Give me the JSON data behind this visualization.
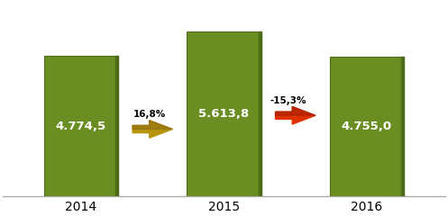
{
  "categories": [
    "2014",
    "2015",
    "2016"
  ],
  "values": [
    4774.5,
    5613.8,
    4755.0
  ],
  "bar_labels": [
    "4.774,5",
    "5.613,8",
    "4.755,0"
  ],
  "bar_color": "#6B8E23",
  "bar_edge_color": "#4E6B1A",
  "bar_highlight": "#7FA128",
  "background_color": "#FFFFFF",
  "bar_width": 0.52,
  "ylim": [
    0,
    6600
  ],
  "xlim": [
    -0.55,
    2.55
  ],
  "arrow1_pct": "16,8%",
  "arrow2_pct": "-15,3%",
  "arrow1_color_body": "#B8960C",
  "arrow1_color_dark": "#8B6914",
  "arrow2_color_body": "#E03000",
  "arrow2_color_dark": "#A02000",
  "label_fontsize": 9.5,
  "tick_fontsize": 10,
  "pct_fontsize": 7.5
}
